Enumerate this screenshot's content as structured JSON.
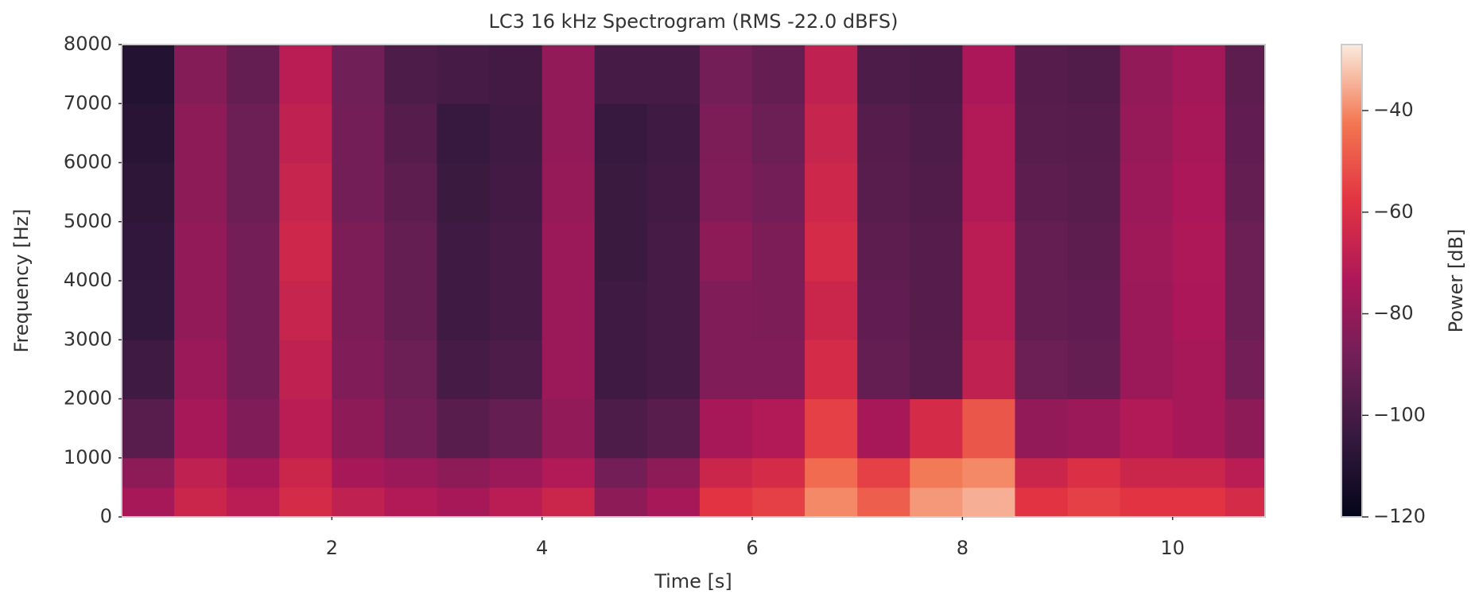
{
  "chart_data": {
    "type": "heatmap",
    "title": "LC3 16 kHz Spectrogram (RMS -22.0 dBFS)",
    "xlabel": "Time [s]",
    "ylabel": "Frequency [Hz]",
    "clabel": "Power [dB]",
    "xlim": [
      0,
      10.88
    ],
    "xticks": [
      2,
      4,
      6,
      8,
      10
    ],
    "ylim": [
      0,
      8000
    ],
    "yticks": [
      0,
      1000,
      2000,
      3000,
      4000,
      5000,
      6000,
      7000,
      8000
    ],
    "clim": [
      -120,
      -27
    ],
    "cticks": [
      {
        "value": -40,
        "label": "−40"
      },
      {
        "value": -60,
        "label": "−60"
      },
      {
        "value": -80,
        "label": "−80"
      },
      {
        "value": -100,
        "label": "−100"
      },
      {
        "value": -120,
        "label": "−120"
      }
    ],
    "colormap": [
      "#03051a",
      "#35193e",
      "#701f57",
      "#ad1759",
      "#e13342",
      "#f37651",
      "#faebdd"
    ],
    "xbins": [
      0,
      0.5,
      1,
      1.5,
      2,
      2.5,
      3,
      3.5,
      4,
      4.5,
      5,
      5.5,
      6,
      6.5,
      7,
      7.5,
      8,
      8.5,
      9,
      9.5,
      10,
      10.5,
      10.88
    ],
    "ybins": [
      0,
      500,
      1000,
      2000,
      3000,
      4000,
      5000,
      6000,
      7000,
      8000
    ],
    "values": [
      [
        -75,
        -65,
        -70,
        -62,
        -68,
        -72,
        -75,
        -70,
        -65,
        -82,
        -75,
        -58,
        -55,
        -40,
        -48,
        -38,
        -35,
        -58,
        -55,
        -58,
        -58,
        -62
      ],
      [
        -82,
        -68,
        -75,
        -65,
        -75,
        -78,
        -82,
        -78,
        -72,
        -88,
        -82,
        -65,
        -62,
        -45,
        -55,
        -42,
        -40,
        -65,
        -60,
        -65,
        -65,
        -70
      ],
      [
        -95,
        -75,
        -85,
        -70,
        -82,
        -88,
        -95,
        -92,
        -80,
        -98,
        -95,
        -75,
        -72,
        -55,
        -75,
        -62,
        -50,
        -80,
        -78,
        -72,
        -75,
        -82
      ],
      [
        -102,
        -78,
        -88,
        -68,
        -85,
        -90,
        -100,
        -98,
        -78,
        -102,
        -100,
        -85,
        -85,
        -62,
        -92,
        -95,
        -68,
        -90,
        -92,
        -78,
        -75,
        -88
      ],
      [
        -105,
        -80,
        -88,
        -66,
        -86,
        -92,
        -102,
        -100,
        -78,
        -102,
        -100,
        -85,
        -86,
        -65,
        -93,
        -96,
        -70,
        -92,
        -93,
        -78,
        -74,
        -90
      ],
      [
        -106,
        -80,
        -88,
        -64,
        -86,
        -92,
        -102,
        -100,
        -78,
        -103,
        -100,
        -82,
        -86,
        -62,
        -94,
        -96,
        -70,
        -92,
        -94,
        -77,
        -73,
        -90
      ],
      [
        -107,
        -82,
        -90,
        -66,
        -88,
        -94,
        -103,
        -101,
        -79,
        -103,
        -101,
        -85,
        -88,
        -64,
        -95,
        -97,
        -72,
        -94,
        -95,
        -78,
        -74,
        -92
      ],
      [
        -108,
        -82,
        -90,
        -68,
        -88,
        -96,
        -104,
        -102,
        -80,
        -104,
        -102,
        -86,
        -90,
        -66,
        -96,
        -98,
        -72,
        -95,
        -96,
        -79,
        -75,
        -93
      ],
      [
        -110,
        -84,
        -92,
        -70,
        -89,
        -98,
        -100,
        -101,
        -80,
        -100,
        -100,
        -88,
        -92,
        -68,
        -98,
        -99,
        -74,
        -96,
        -97,
        -80,
        -76,
        -94
      ]
    ]
  }
}
